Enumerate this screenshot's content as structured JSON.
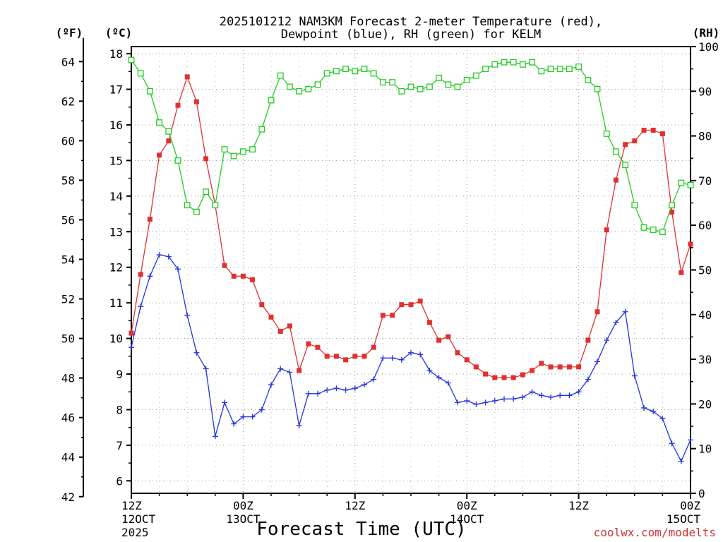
{
  "chart_data": {
    "type": "line",
    "title_line1": "2025101212 NAM3KM Forecast 2-meter Temperature (red),",
    "title_line2": "Dewpoint (blue), RH (green) for KELM",
    "xlabel": "Forecast Time (UTC)",
    "credit": "coolwx.com/modelts",
    "unit_f": "(ºF)",
    "unit_c": "(ºC)",
    "unit_rh": "(RH)",
    "x_range_hours": [
      0,
      60
    ],
    "y_left_c_range": [
      5.65,
      18.2
    ],
    "y_right_rh_range": [
      0,
      100
    ],
    "f_ticks": [
      42,
      44,
      46,
      48,
      50,
      52,
      54,
      56,
      58,
      60,
      62,
      64
    ],
    "c_ticks": [
      6,
      7,
      8,
      9,
      10,
      11,
      12,
      13,
      14,
      15,
      16,
      17,
      18
    ],
    "rh_ticks": [
      0,
      10,
      20,
      30,
      40,
      50,
      60,
      70,
      80,
      90,
      100
    ],
    "x_ticks": [
      {
        "hour": 0,
        "line1": "12Z",
        "line2": "12OCT",
        "line3": "2025"
      },
      {
        "hour": 12,
        "line1": "00Z",
        "line2": "13OCT",
        "line3": ""
      },
      {
        "hour": 24,
        "line1": "12Z",
        "line2": "",
        "line3": ""
      },
      {
        "hour": 36,
        "line1": "00Z",
        "line2": "14OCT",
        "line3": ""
      },
      {
        "hour": 48,
        "line1": "12Z",
        "line2": "",
        "line3": ""
      },
      {
        "hour": 60,
        "line1": "00Z",
        "line2": "15OCT",
        "line3": ""
      }
    ],
    "series": [
      {
        "name": "Temperature",
        "unit": "C",
        "color": "#e03030",
        "marker": "filled-square",
        "x": [
          0,
          1,
          2,
          3,
          4,
          5,
          6,
          7,
          8,
          9,
          10,
          11,
          12,
          13,
          14,
          15,
          16,
          17,
          18,
          19,
          20,
          21,
          22,
          23,
          24,
          25,
          26,
          27,
          28,
          29,
          30,
          31,
          32,
          33,
          34,
          35,
          36,
          37,
          38,
          39,
          40,
          41,
          42,
          43,
          44,
          45,
          46,
          47,
          48,
          49,
          50,
          51,
          52,
          53,
          54,
          55,
          56,
          57,
          58,
          59,
          60
        ],
        "values": [
          10.15,
          11.8,
          13.35,
          15.15,
          15.55,
          16.55,
          17.35,
          16.65,
          15.05,
          13.75,
          12.05,
          11.75,
          11.75,
          11.65,
          10.95,
          10.6,
          10.2,
          10.35,
          9.1,
          9.85,
          9.75,
          9.5,
          9.5,
          9.4,
          9.5,
          9.5,
          9.75,
          10.65,
          10.65,
          10.95,
          10.95,
          11.05,
          10.45,
          9.95,
          10.05,
          9.6,
          9.4,
          9.2,
          9.0,
          8.9,
          8.9,
          8.9,
          8.98,
          9.1,
          9.3,
          9.2,
          9.2,
          9.2,
          9.2,
          9.95,
          10.75,
          13.05,
          14.45,
          15.45,
          15.55,
          15.85,
          15.85,
          15.75,
          13.55,
          11.85,
          12.65
        ]
      },
      {
        "name": "Dewpoint",
        "unit": "C",
        "color": "#2233dd",
        "marker": "plus",
        "x": [
          0,
          1,
          2,
          3,
          4,
          5,
          6,
          7,
          8,
          9,
          10,
          11,
          12,
          13,
          14,
          15,
          16,
          17,
          18,
          19,
          20,
          21,
          22,
          23,
          24,
          25,
          26,
          27,
          28,
          29,
          30,
          31,
          32,
          33,
          34,
          35,
          36,
          37,
          38,
          39,
          40,
          41,
          42,
          43,
          44,
          45,
          46,
          47,
          48,
          49,
          50,
          51,
          52,
          53,
          54,
          55,
          56,
          57,
          58,
          59,
          60
        ],
        "values": [
          9.75,
          10.9,
          11.75,
          12.35,
          12.3,
          11.95,
          10.65,
          9.6,
          9.15,
          7.25,
          8.2,
          7.6,
          7.8,
          7.8,
          8.0,
          8.7,
          9.15,
          9.05,
          7.55,
          8.45,
          8.45,
          8.55,
          8.6,
          8.55,
          8.6,
          8.7,
          8.85,
          9.45,
          9.45,
          9.4,
          9.6,
          9.55,
          9.1,
          8.9,
          8.75,
          8.2,
          8.25,
          8.15,
          8.2,
          8.25,
          8.3,
          8.3,
          8.35,
          8.5,
          8.4,
          8.35,
          8.4,
          8.4,
          8.5,
          8.85,
          9.35,
          9.95,
          10.45,
          10.75,
          8.95,
          8.05,
          7.95,
          7.75,
          7.05,
          6.55,
          7.15
        ]
      },
      {
        "name": "RH",
        "unit": "%",
        "color": "#22cc22",
        "marker": "open-square",
        "x": [
          0,
          1,
          2,
          3,
          4,
          5,
          6,
          7,
          8,
          9,
          10,
          11,
          12,
          13,
          14,
          15,
          16,
          17,
          18,
          19,
          20,
          21,
          22,
          23,
          24,
          25,
          26,
          27,
          28,
          29,
          30,
          31,
          32,
          33,
          34,
          35,
          36,
          37,
          38,
          39,
          40,
          41,
          42,
          43,
          44,
          45,
          46,
          47,
          48,
          49,
          50,
          51,
          52,
          53,
          54,
          55,
          56,
          57,
          58,
          59,
          60
        ],
        "values": [
          97,
          94,
          90,
          83,
          81,
          74.5,
          64.5,
          63,
          67.5,
          64.5,
          77,
          75.5,
          76.5,
          77,
          81.5,
          88,
          93.5,
          91,
          90,
          90.5,
          91.5,
          94,
          94.5,
          95,
          94.5,
          95,
          94,
          92,
          92,
          90,
          91,
          90.5,
          91,
          93,
          91.5,
          91,
          92.5,
          93.5,
          95,
          96,
          96.5,
          96.5,
          96,
          96.5,
          94.5,
          95,
          95,
          95,
          95.5,
          92.5,
          90.5,
          80.5,
          76.5,
          73.5,
          64.5,
          59.5,
          59,
          58.5,
          64.5,
          69.5,
          69
        ]
      }
    ]
  }
}
